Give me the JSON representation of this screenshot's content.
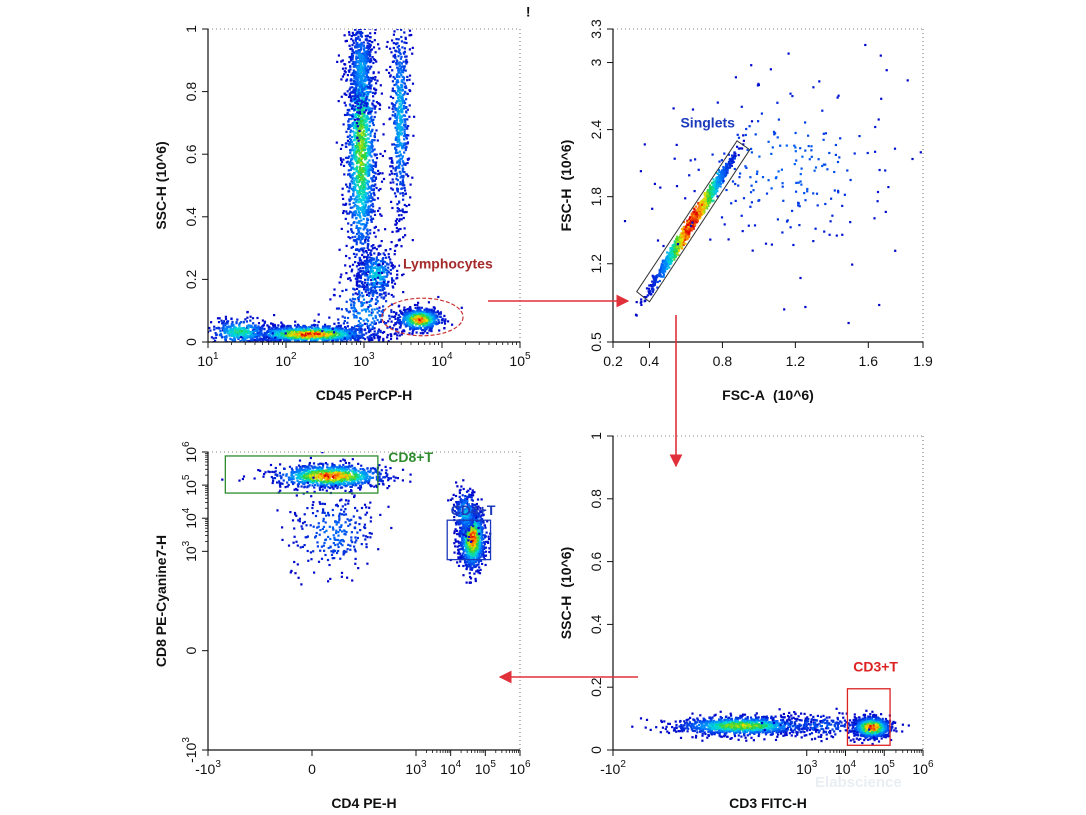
{
  "chart_data": [
    {
      "id": "p1",
      "type": "scatter",
      "subtype": "flow-cytometry-density",
      "xlabel": "CD45 PerCP-H",
      "ylabel": "SSC-H (10^6)",
      "xscale": "log",
      "xlim": [
        1,
        5
      ],
      "ylim": [
        0,
        1
      ],
      "x_ticks": [
        {
          "value": 1,
          "base": "10",
          "exp": "1"
        },
        {
          "value": 2,
          "base": "10",
          "exp": "2"
        },
        {
          "value": 3,
          "base": "10",
          "exp": "3"
        },
        {
          "value": 4,
          "base": "10",
          "exp": "4"
        },
        {
          "value": 5,
          "base": "10",
          "exp": "5"
        }
      ],
      "y_ticks": [
        {
          "value": 0,
          "label": "0"
        },
        {
          "value": 0.2,
          "label": "0.2"
        },
        {
          "value": 0.4,
          "label": "0.4"
        },
        {
          "value": 0.6,
          "label": "0.6"
        },
        {
          "value": 0.8,
          "label": "0.8"
        },
        {
          "value": 1,
          "label": "1"
        }
      ],
      "populations": [
        {
          "cx": 2.3,
          "cy": 0.028,
          "sx": 0.38,
          "sy": 0.014,
          "n": 1400,
          "peak": 1.0
        },
        {
          "cx": 1.4,
          "cy": 0.035,
          "sx": 0.2,
          "sy": 0.022,
          "n": 350,
          "peak": 0.55
        },
        {
          "cx": 2.95,
          "cy": 0.62,
          "sx": 0.1,
          "sy": 0.2,
          "n": 1500,
          "peak": 0.7
        },
        {
          "cx": 2.95,
          "cy": 0.88,
          "sx": 0.08,
          "sy": 0.08,
          "n": 400,
          "peak": 0.35
        },
        {
          "cx": 3.45,
          "cy": 0.72,
          "sx": 0.06,
          "sy": 0.17,
          "n": 550,
          "peak": 0.4
        },
        {
          "cx": 3.15,
          "cy": 0.22,
          "sx": 0.12,
          "sy": 0.04,
          "n": 320,
          "peak": 0.45
        },
        {
          "cx": 3.7,
          "cy": 0.075,
          "sx": 0.14,
          "sy": 0.018,
          "n": 600,
          "peak": 0.95
        },
        {
          "cx": 3.0,
          "cy": 0.1,
          "sx": 0.22,
          "sy": 0.07,
          "n": 250,
          "peak": 0.3
        }
      ],
      "gates": [
        {
          "name": "Lymphocytes",
          "shape": "ellipse",
          "cx": 3.75,
          "cy": 0.08,
          "rx": 0.52,
          "ry": 0.06,
          "color": "#cc3333",
          "label_color": "#a52a2a",
          "label_x": 3.5,
          "label_y": 0.235
        }
      ],
      "annotations": [
        {
          "text": "!",
          "x": 5.05,
          "y": 1.04
        }
      ]
    },
    {
      "id": "p2",
      "type": "scatter",
      "subtype": "flow-cytometry-density",
      "xlabel": "FSC-A",
      "xlabel_unit": "(10^6)",
      "ylabel": "FSC-H",
      "ylabel_unit": "(10^6)",
      "xlim": [
        0.2,
        1.9
      ],
      "ylim": [
        0.5,
        3.3
      ],
      "x_ticks": [
        {
          "value": 0.2,
          "label": "0.2"
        },
        {
          "value": 0.4,
          "label": "0.4"
        },
        {
          "value": 0.8,
          "label": "0.8"
        },
        {
          "value": 1.2,
          "label": "1.2"
        },
        {
          "value": 1.6,
          "label": "1.6"
        },
        {
          "value": 1.9,
          "label": "1.9"
        }
      ],
      "y_ticks": [
        {
          "value": 0.5,
          "label": "0.5"
        },
        {
          "value": 1.2,
          "label": "1.2"
        },
        {
          "value": 1.8,
          "label": "1.8"
        },
        {
          "value": 2.4,
          "label": "2.4"
        },
        {
          "value": 3,
          "label": "3"
        },
        {
          "value": 3.3,
          "label": "3.3"
        }
      ],
      "populations": [
        {
          "cx": 0.63,
          "cy": 1.58,
          "sx": 0.1,
          "sy": 0.2,
          "rot_slope": 2.6,
          "n": 1800,
          "peak": 1.0,
          "diag": true
        },
        {
          "cx": 1.15,
          "cy": 2.1,
          "sx": 0.35,
          "sy": 0.45,
          "n": 220,
          "peak": 0.2
        }
      ],
      "gates": [
        {
          "name": "Singlets",
          "shape": "polygon",
          "points": [
            [
              0.33,
              0.95
            ],
            [
              0.88,
              2.3
            ],
            [
              0.95,
              2.22
            ],
            [
              0.4,
              0.86
            ]
          ],
          "color": "#333333",
          "label_color": "#1c39bb",
          "label_x": 0.57,
          "label_y": 2.42
        }
      ]
    },
    {
      "id": "p3",
      "type": "scatter",
      "subtype": "flow-cytometry-density",
      "xlabel": "CD4 PE-H",
      "ylabel": "CD8 PE-Cyanine7-H",
      "xscale": "biexponential",
      "yscale": "biexponential",
      "xlim": [
        -3,
        6
      ],
      "ylim": [
        -3,
        6
      ],
      "x_ticks": [
        {
          "value": -3,
          "base": "-10",
          "exp": "3"
        },
        {
          "value": 0,
          "base": "0",
          "exp": ""
        },
        {
          "value": 3,
          "base": "10",
          "exp": "3"
        },
        {
          "value": 4,
          "base": "10",
          "exp": "4"
        },
        {
          "value": 5,
          "base": "10",
          "exp": "5"
        },
        {
          "value": 6,
          "base": "10",
          "exp": "6"
        }
      ],
      "y_ticks": [
        {
          "value": -3,
          "base": "-10",
          "exp": "3"
        },
        {
          "value": 0,
          "base": "0",
          "exp": ""
        },
        {
          "value": 3,
          "base": "10",
          "exp": "3"
        },
        {
          "value": 4,
          "base": "10",
          "exp": "4"
        },
        {
          "value": 5,
          "base": "10",
          "exp": "5"
        },
        {
          "value": 6,
          "base": "10",
          "exp": "6"
        }
      ],
      "populations": [
        {
          "cx": 0.5,
          "cy": 5.3,
          "sx": 0.8,
          "sy": 0.18,
          "n": 900,
          "peak": 1.0
        },
        {
          "cx": 4.6,
          "cy": 3.4,
          "sx": 0.18,
          "sy": 0.45,
          "n": 1100,
          "peak": 1.0
        },
        {
          "cx": 4.4,
          "cy": 4.2,
          "sx": 0.17,
          "sy": 0.35,
          "n": 250,
          "peak": 0.4
        },
        {
          "cx": 0.6,
          "cy": 3.6,
          "sx": 0.65,
          "sy": 0.6,
          "n": 260,
          "peak": 0.22
        }
      ],
      "gates": [
        {
          "name": "CD8+T",
          "shape": "rect",
          "x0": -2.5,
          "x1": 1.9,
          "y0": 4.76,
          "y1": 5.88,
          "color": "#2e8b2e",
          "label_color": "#2e8b2e",
          "label_x": 2.2,
          "label_y": 5.7
        },
        {
          "name": "CD4+T",
          "shape": "rect",
          "x0": 3.9,
          "x1": 5.15,
          "y0": 2.75,
          "y1": 3.94,
          "color": "#1c39bb",
          "label_color": "#1c39bb",
          "label_x": 4.0,
          "label_y": 4.1
        }
      ]
    },
    {
      "id": "p4",
      "type": "scatter",
      "subtype": "flow-cytometry-density",
      "xlabel": "CD3 FITC-H",
      "ylabel": "SSC-H",
      "ylabel_unit": "(10^6)",
      "xscale": "biexponential",
      "xlim": [
        -2,
        6
      ],
      "ylim": [
        0,
        1
      ],
      "x_ticks": [
        {
          "value": -2,
          "base": "-10",
          "exp": "2"
        },
        {
          "value": 3,
          "base": "10",
          "exp": "3"
        },
        {
          "value": 4,
          "base": "10",
          "exp": "4"
        },
        {
          "value": 5,
          "base": "10",
          "exp": "5"
        },
        {
          "value": 6,
          "base": "10",
          "exp": "6"
        }
      ],
      "y_ticks": [
        {
          "value": 0,
          "label": "0"
        },
        {
          "value": 0.2,
          "label": "0.2"
        },
        {
          "value": 0.4,
          "label": "0.4"
        },
        {
          "value": 0.6,
          "label": "0.6"
        },
        {
          "value": 0.8,
          "label": "0.8"
        },
        {
          "value": 1,
          "label": "1"
        }
      ],
      "populations": [
        {
          "cx": 1.3,
          "cy": 0.08,
          "sx": 0.85,
          "sy": 0.015,
          "n": 1100,
          "peak": 0.75
        },
        {
          "cx": 4.65,
          "cy": 0.075,
          "sx": 0.25,
          "sy": 0.017,
          "n": 900,
          "peak": 1.0
        },
        {
          "cx": 3.3,
          "cy": 0.08,
          "sx": 0.6,
          "sy": 0.02,
          "n": 150,
          "peak": 0.2
        }
      ],
      "gates": [
        {
          "name": "CD3+T",
          "shape": "rect",
          "x0": 4.05,
          "x1": 5.15,
          "y0": 0.015,
          "y1": 0.195,
          "color": "#dd2222",
          "label_color": "#dd2222",
          "label_x": 4.2,
          "label_y": 0.25
        }
      ]
    }
  ],
  "watermark": "Elabscience"
}
